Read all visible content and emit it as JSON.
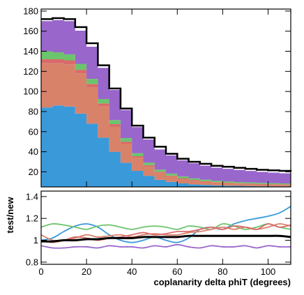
{
  "chart_data": [
    {
      "type": "area",
      "panel": "top",
      "stacked": true,
      "xlim": [
        0,
        110
      ],
      "ylim": [
        5,
        182
      ],
      "yticks": [
        20,
        40,
        60,
        80,
        100,
        120,
        140,
        160,
        180
      ],
      "x": [
        0,
        5,
        10,
        15,
        20,
        25,
        30,
        35,
        40,
        45,
        50,
        55,
        60,
        65,
        70,
        75,
        80,
        85,
        90,
        95,
        100,
        105,
        110
      ],
      "series": [
        {
          "color": "#3a9ad9",
          "values": [
            84,
            86,
            85,
            78,
            68,
            54,
            40,
            29,
            21,
            16,
            12,
            10,
            8.5,
            7.5,
            7,
            6.5,
            6.2,
            6,
            5.8,
            5.6,
            5.5,
            5.4,
            5.3
          ]
        },
        {
          "color": "#d9826a",
          "values": [
            44,
            42,
            42,
            40,
            36,
            31,
            25,
            19,
            13,
            9.5,
            7,
            5.5,
            4.5,
            3.8,
            3.2,
            2.8,
            2.5,
            2.2,
            2,
            1.8,
            1.7,
            1.6,
            1.5
          ]
        },
        {
          "color": "#d96a6a",
          "values": [
            4,
            4,
            4,
            3.5,
            3.5,
            3,
            2.5,
            2,
            1.5,
            1.2,
            1,
            0.8,
            0.7,
            0.6,
            0.5,
            0.5,
            0.5,
            0.5,
            0.5,
            0.5,
            0.5,
            0.5,
            0.5
          ]
        },
        {
          "color": "#6cc46c",
          "values": [
            8,
            7,
            6,
            6,
            5,
            4.5,
            4,
            3.5,
            3,
            2.5,
            2.2,
            2,
            1.8,
            1.6,
            1.5,
            1.4,
            1.3,
            1.2,
            1.1,
            1,
            1,
            1,
            1
          ]
        },
        {
          "color": "#9966cc",
          "values": [
            30,
            32,
            33,
            33,
            32,
            31,
            30,
            28,
            26,
            23,
            20,
            18,
            16,
            15,
            14,
            13,
            12.5,
            12,
            11.5,
            11,
            10.5,
            10,
            10
          ]
        }
      ],
      "total_line": {
        "color": "#000000",
        "values": [
          172,
          173,
          172,
          164,
          148,
          126,
          103,
          83,
          66,
          54,
          45,
          38,
          33,
          30,
          28,
          26,
          25,
          24,
          23,
          22,
          21.5,
          21,
          20.5
        ]
      }
    },
    {
      "type": "line",
      "panel": "bottom",
      "ylabel": "test/new",
      "xlabel": "coplanarity delta phiT (degrees)",
      "xlim": [
        0,
        110
      ],
      "ylim": [
        0.78,
        1.45
      ],
      "xticks": [
        0,
        20,
        40,
        60,
        80,
        100
      ],
      "yticks": [
        0.8,
        1,
        1.2,
        1.4
      ],
      "x": [
        0,
        5,
        10,
        15,
        20,
        25,
        30,
        35,
        40,
        45,
        50,
        55,
        60,
        65,
        70,
        75,
        80,
        85,
        90,
        95,
        100,
        105,
        110
      ],
      "series": [
        {
          "color": "#3a9ad9",
          "values": [
            1.0,
            1.02,
            1.08,
            1.13,
            1.15,
            1.12,
            1.05,
            1.0,
            0.98,
            1.0,
            1.03,
            1.0,
            0.98,
            1.02,
            1.1,
            1.12,
            1.1,
            1.15,
            1.18,
            1.2,
            1.22,
            1.25,
            1.31
          ]
        },
        {
          "color": "#6cc46c",
          "values": [
            1.12,
            1.15,
            1.14,
            1.12,
            1.1,
            1.13,
            1.14,
            1.12,
            1.1,
            1.12,
            1.13,
            1.12,
            1.1,
            1.13,
            1.12,
            1.1,
            1.15,
            1.13,
            1.1,
            1.12,
            1.15,
            1.12,
            1.1
          ]
        },
        {
          "color": "#d9826a",
          "values": [
            1.05,
            1.0,
            1.0,
            1.02,
            1.05,
            1.03,
            1.04,
            1.05,
            1.03,
            1.05,
            1.06,
            1.05,
            1.05,
            1.07,
            1.08,
            1.1,
            1.12,
            1.1,
            1.12,
            1.1,
            1.12,
            1.15,
            1.13
          ]
        },
        {
          "color": "#d96a6a",
          "values": [
            1.0,
            0.98,
            1.0,
            1.03,
            1.02,
            1.0,
            1.02,
            1.03,
            1.05,
            1.07,
            1.05,
            1.06,
            1.08,
            1.08,
            1.1,
            1.12,
            1.1,
            1.13,
            1.12,
            1.1,
            1.15,
            1.12,
            1.14
          ]
        },
        {
          "color": "#9966cc",
          "values": [
            0.95,
            0.93,
            0.93,
            0.94,
            0.94,
            0.93,
            0.95,
            0.94,
            0.94,
            0.93,
            0.95,
            0.94,
            0.96,
            0.94,
            0.93,
            0.95,
            0.94,
            0.94,
            0.95,
            0.93,
            0.95,
            0.94,
            0.94
          ]
        },
        {
          "color": "#000000",
          "values": [
            0.99,
            0.99,
            1.0,
            1.0,
            1.01,
            1.01,
            1.02,
            1.02,
            1.02,
            1.03,
            1.03,
            1.03,
            1.03,
            1.04,
            1.04,
            1.04,
            1.04,
            1.04,
            1.04,
            1.04,
            1.04,
            1.04,
            1.03
          ]
        }
      ]
    }
  ]
}
